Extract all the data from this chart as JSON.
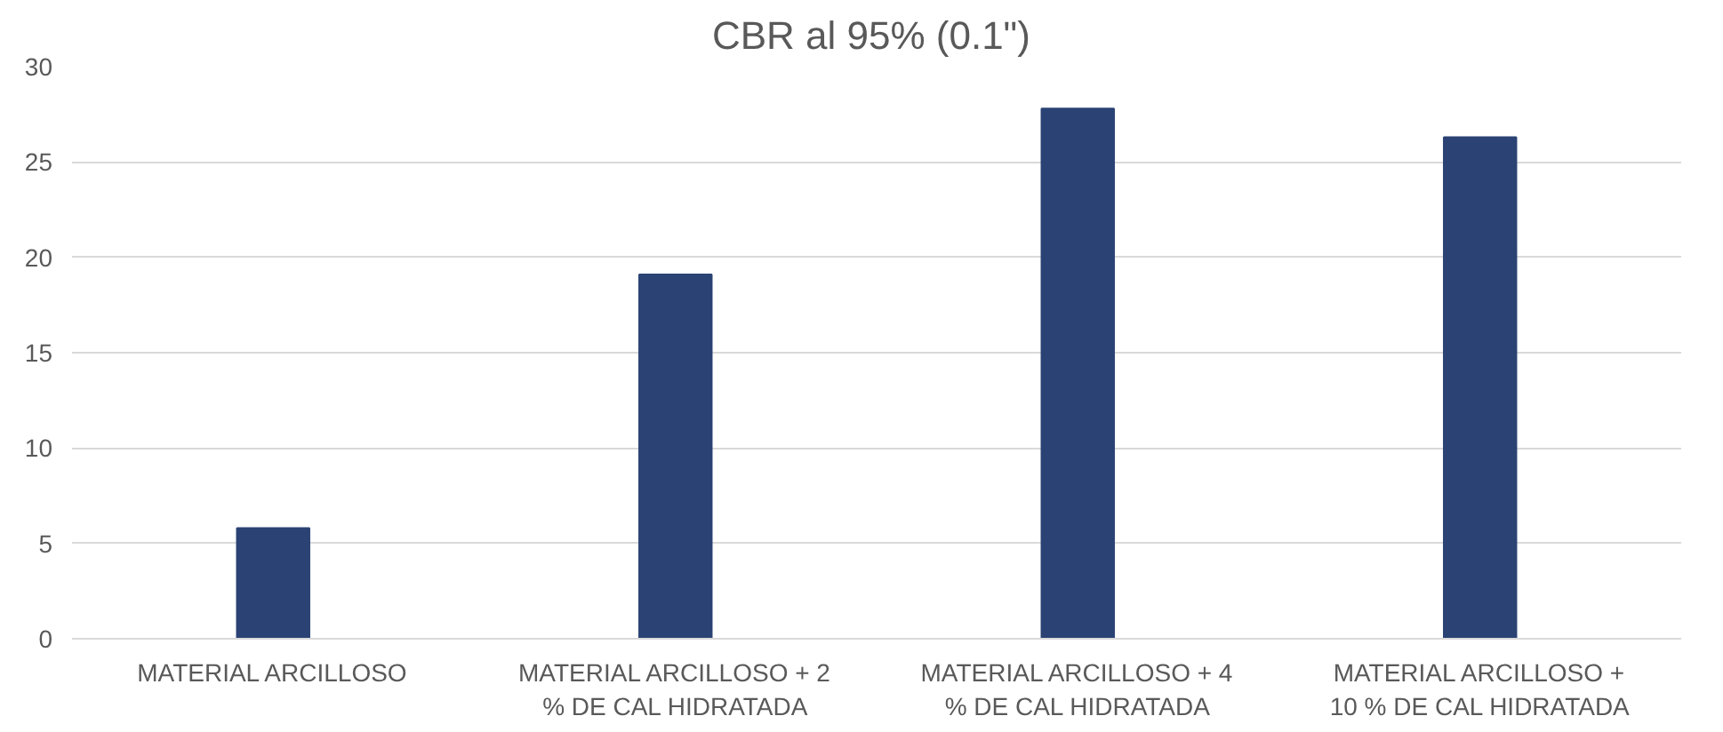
{
  "chart_data": {
    "type": "bar",
    "title": "CBR al 95%  (0.1\")",
    "categories": [
      "MATERIAL ARCILLOSO",
      "MATERIAL ARCILLOSO + 2 % DE CAL HIDRATADA",
      "MATERIAL ARCILLOSO + 4 % DE CAL HIDRATADA",
      "MATERIAL ARCILLOSO + 10 % DE CAL HIDRATADA"
    ],
    "values": [
      5.8,
      19.1,
      27.8,
      26.3
    ],
    "color": "#2a4374",
    "ylim": [
      0,
      30
    ],
    "yticks": [
      0,
      5,
      10,
      15,
      20,
      25,
      30
    ],
    "grid": "y"
  }
}
